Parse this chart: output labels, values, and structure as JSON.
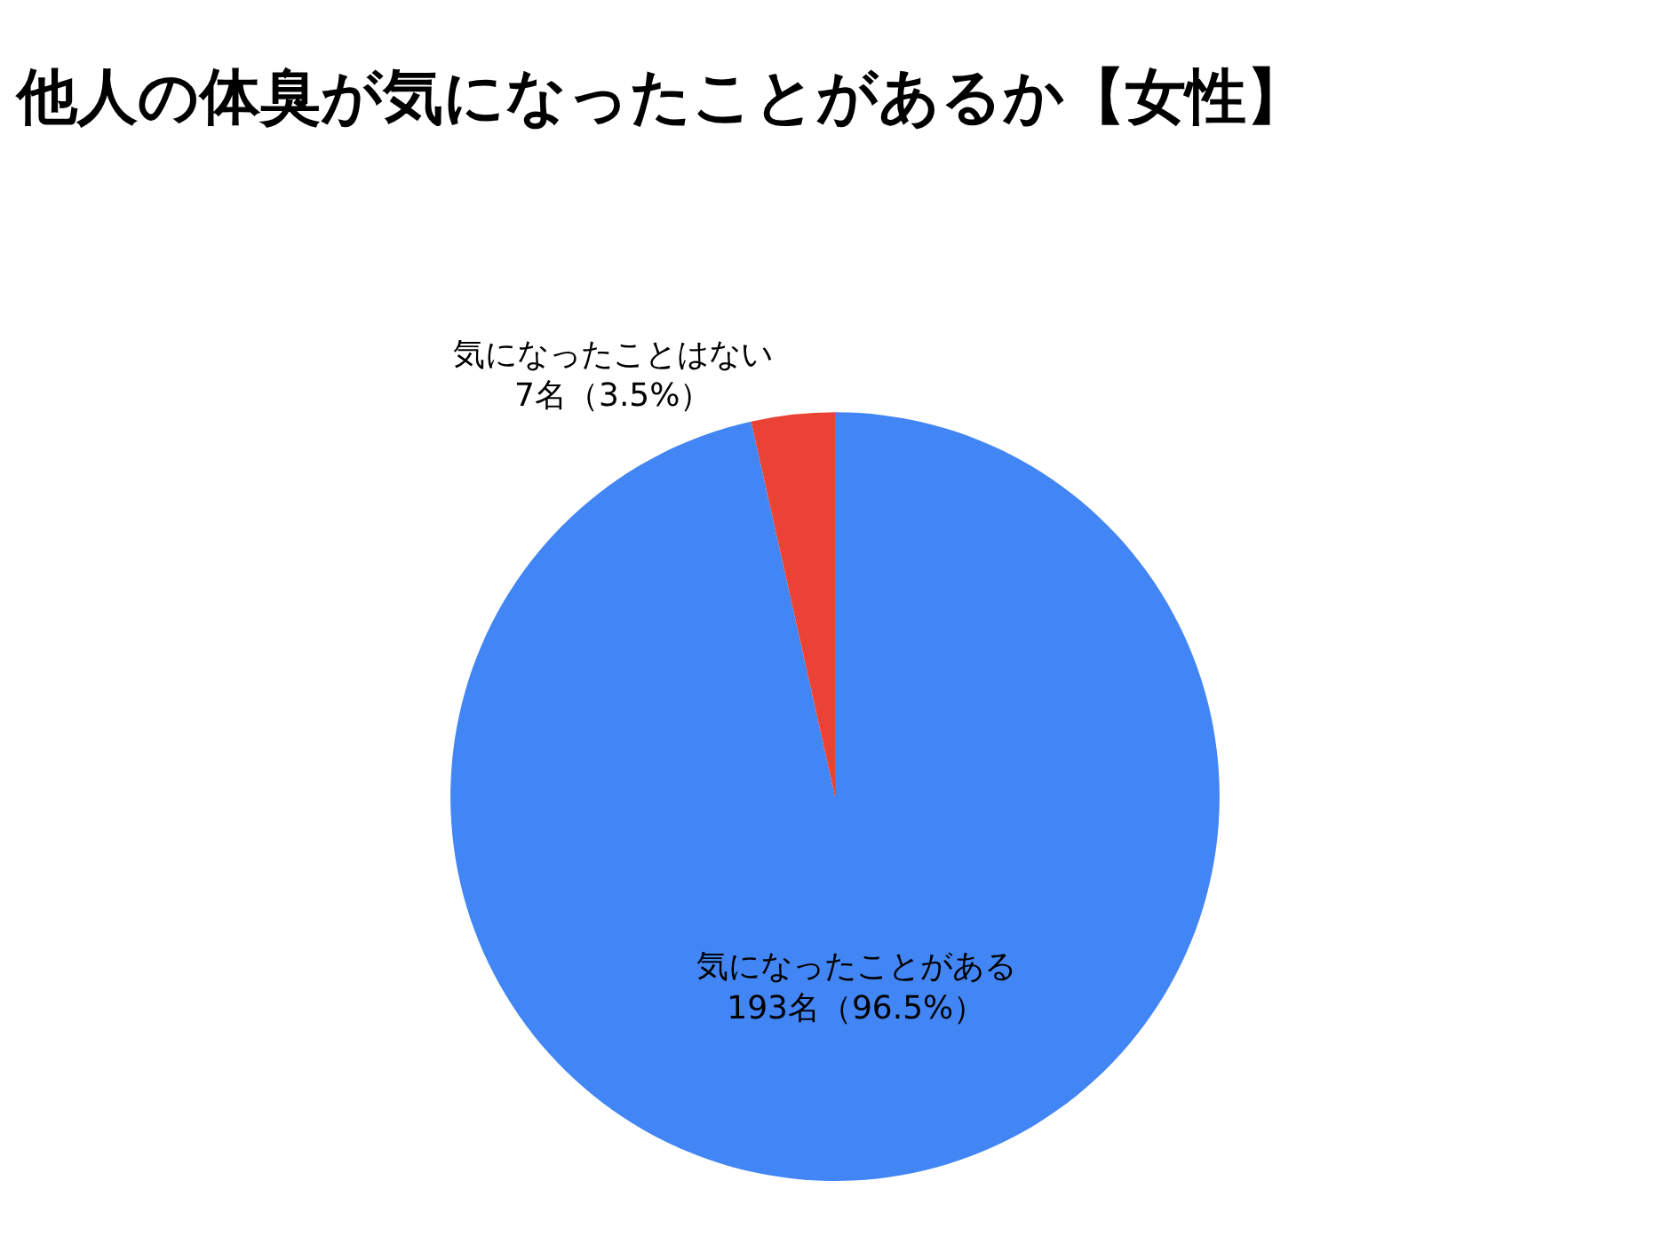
{
  "chart_data": {
    "type": "pie",
    "title": "他人の体臭が気になったことがあるか【女性】",
    "categories": [
      "気になったことがある",
      "気になったことはない"
    ],
    "values": [
      193,
      7
    ],
    "value_labels": [
      "193名（96.5%）",
      "7名（3.5%）"
    ],
    "colors": [
      "#4285f4",
      "#ea4335"
    ],
    "legend": false
  }
}
